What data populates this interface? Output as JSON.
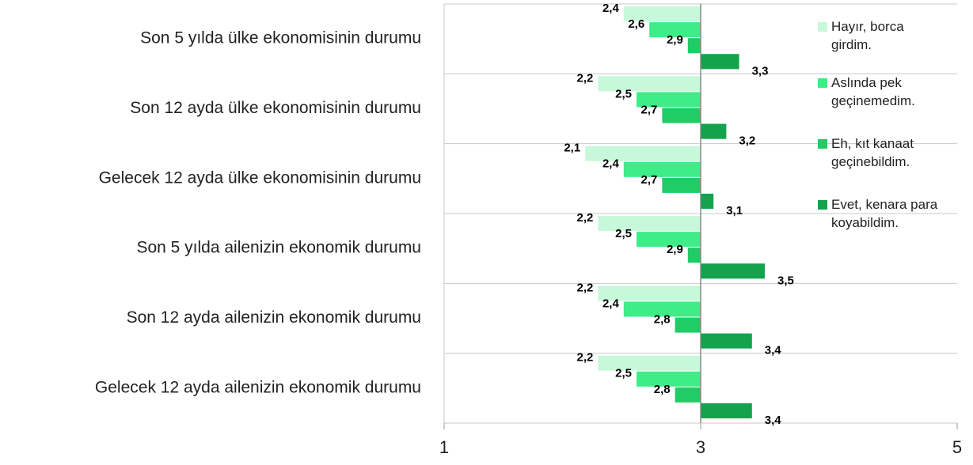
{
  "chart_data": {
    "type": "hbar",
    "categories": [
      "Son 5 yılda ülke ekonomisinin durumu",
      "Son 12 ayda ülke ekonomisinin durumu",
      "Gelecek 12 ayda ülke ekonomisinin durumu",
      "Son 5 yılda ailenizin ekonomik durumu",
      "Son 12 ayda ailenizin ekonomik durumu",
      "Gelecek 12 ayda ailenizin ekonomik durumu"
    ],
    "series": [
      {
        "name": "Hayır, borca girdim.",
        "color": "#c8f8da",
        "values": [
          2.4,
          2.2,
          2.1,
          2.2,
          2.2,
          2.2
        ],
        "value_labels": [
          "2,4",
          "2,2",
          "2,1",
          "2,2",
          "2,2",
          "2,2"
        ]
      },
      {
        "name": "Aslında pek geçinemedim.",
        "color": "#3eec88",
        "values": [
          2.6,
          2.5,
          2.4,
          2.5,
          2.4,
          2.5
        ],
        "value_labels": [
          "2,6",
          "2,5",
          "2,4",
          "2,5",
          "2,4",
          "2,5"
        ]
      },
      {
        "name": "Eh, kıt kanaat geçinebildim.",
        "color": "#1fcc66",
        "values": [
          2.9,
          2.7,
          2.7,
          2.9,
          2.8,
          2.8
        ],
        "value_labels": [
          "2,9",
          "2,7",
          "2,7",
          "2,9",
          "2,8",
          "2,8"
        ]
      },
      {
        "name": "Evet, kenara para koyabildim.",
        "color": "#14a34c",
        "values": [
          3.3,
          3.2,
          3.1,
          3.5,
          3.4,
          3.4
        ],
        "value_labels": [
          "3,3",
          "3,2",
          "3,1",
          "3,5",
          "3,4",
          "3,4"
        ]
      }
    ],
    "xlim": [
      1,
      5
    ],
    "xticks": [
      1,
      3,
      5
    ],
    "axis_crosses": 3,
    "legend": "right"
  }
}
